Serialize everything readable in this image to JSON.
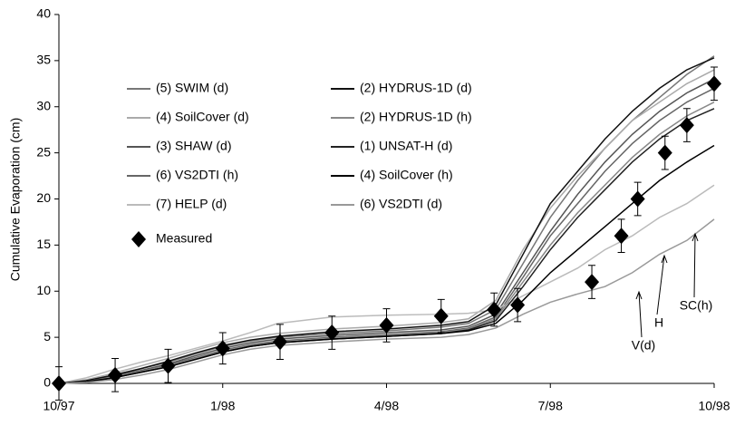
{
  "chart_data": {
    "type": "line",
    "y_label": "Cumulative Evaporation (cm)",
    "xlim": [
      0,
      12
    ],
    "xticks": [
      {
        "value": 0,
        "label": "10/97"
      },
      {
        "value": 3,
        "label": "1/98"
      },
      {
        "value": 6,
        "label": "4/98"
      },
      {
        "value": 9,
        "label": "7/98"
      },
      {
        "value": 12,
        "label": "10/98"
      }
    ],
    "ylim": [
      0,
      40
    ],
    "yticks": [
      0,
      5,
      10,
      15,
      20,
      25,
      30,
      35,
      40
    ],
    "x": [
      0,
      0.5,
      1,
      1.5,
      2,
      2.5,
      3,
      3.5,
      4,
      5,
      6,
      7,
      7.5,
      8,
      8.5,
      9,
      9.5,
      10,
      10.5,
      11,
      11.5,
      12
    ],
    "series": [
      {
        "name": "(5) SWIM (d)",
        "color": "#777777",
        "values": [
          0,
          0.3,
          0.9,
          1.6,
          2.3,
          3.2,
          4.0,
          4.6,
          5.0,
          5.4,
          5.7,
          6.1,
          6.5,
          8.0,
          13,
          18,
          22,
          25.5,
          28.5,
          31,
          33.5,
          35.5
        ]
      },
      {
        "name": "(4) SoilCover (d)",
        "color": "#aaaaaa",
        "values": [
          0,
          0.4,
          1.1,
          1.9,
          2.7,
          3.6,
          4.4,
          5.0,
          5.4,
          5.9,
          6.2,
          6.6,
          7.0,
          9,
          14.5,
          19,
          22.5,
          25.5,
          28.5,
          30.5,
          32.5,
          34
        ]
      },
      {
        "name": "(3) SHAW (d)",
        "color": "#555555",
        "values": [
          0,
          0.2,
          0.8,
          1.4,
          2.1,
          3.0,
          3.8,
          4.4,
          4.8,
          5.2,
          5.5,
          5.8,
          6.2,
          7.5,
          12,
          16.5,
          20.5,
          24,
          27,
          29.5,
          31.5,
          33
        ]
      },
      {
        "name": "(6) VS2DTI (h)",
        "color": "#666666",
        "values": [
          0,
          0.2,
          0.7,
          1.3,
          2.0,
          2.8,
          3.6,
          4.2,
          4.6,
          5.0,
          5.3,
          5.6,
          6.0,
          7.2,
          11.5,
          16,
          19.5,
          23,
          26,
          28.5,
          30.5,
          32
        ]
      },
      {
        "name": "(7) HELP (d)",
        "color": "#bbbbbb",
        "values": [
          0,
          0.6,
          1.5,
          2.3,
          3.0,
          3.8,
          4.6,
          5.5,
          6.5,
          7.2,
          7.4,
          7.5,
          7.6,
          8.0,
          9.5,
          11,
          12.5,
          14.5,
          16,
          18,
          19.5,
          21.5
        ]
      },
      {
        "name": "(2) HYDRUS-1D (d)",
        "color": "#111111",
        "values": [
          0,
          0.3,
          0.9,
          1.6,
          2.4,
          3.3,
          4.1,
          4.7,
          5.1,
          5.6,
          5.9,
          6.3,
          6.7,
          8.5,
          14,
          19.5,
          23,
          26.5,
          29.5,
          32,
          34,
          35.3
        ]
      },
      {
        "name": "(2) HYDRUS-1D (h)",
        "color": "#888888",
        "values": [
          0,
          0.2,
          0.7,
          1.3,
          1.9,
          2.7,
          3.5,
          4.1,
          4.5,
          4.9,
          5.2,
          5.5,
          5.9,
          7,
          11,
          15,
          18.5,
          21.5,
          24.5,
          27,
          29,
          30.5
        ]
      },
      {
        "name": "(1) UNSAT-H (d)",
        "color": "#222222",
        "values": [
          0,
          0.1,
          0.6,
          1.2,
          1.8,
          2.6,
          3.4,
          4.0,
          4.4,
          4.8,
          5.1,
          5.4,
          5.8,
          6.8,
          10.5,
          14.5,
          18,
          21,
          24,
          26.5,
          28.5,
          29.8
        ]
      },
      {
        "name": "(4) SoilCover (h)",
        "color": "#000000",
        "values": [
          0,
          0.2,
          0.6,
          1.2,
          1.8,
          2.6,
          3.4,
          4.0,
          4.4,
          4.8,
          5.1,
          5.4,
          5.7,
          6.5,
          9,
          12,
          14.5,
          17,
          19.5,
          22,
          24,
          25.8
        ]
      },
      {
        "name": "(6) VS2DTI (d)",
        "color": "#999999",
        "values": [
          0,
          0.1,
          0.4,
          0.9,
          1.5,
          2.3,
          3.1,
          3.7,
          4.1,
          4.5,
          4.8,
          5.0,
          5.3,
          6,
          7.5,
          8.8,
          9.7,
          10.5,
          12,
          14,
          15.5,
          17.8
        ]
      }
    ],
    "measured": {
      "name": "Measured",
      "color": "#000000",
      "x": [
        0,
        1.03,
        2,
        3,
        4.05,
        5,
        6,
        7,
        7.97,
        8.4,
        9.76,
        10.3,
        10.6,
        11.1,
        11.5,
        12
      ],
      "values": [
        0,
        0.9,
        1.9,
        3.8,
        4.5,
        5.5,
        6.3,
        7.3,
        8.0,
        8.5,
        11,
        16,
        20,
        25,
        28,
        32.5
      ],
      "errors": [
        1.8,
        1.8,
        1.8,
        1.7,
        1.9,
        1.8,
        1.8,
        1.8,
        1.8,
        1.8,
        1.8,
        1.8,
        1.8,
        1.8,
        1.8,
        1.8
      ]
    },
    "annotations": [
      "V(d)",
      "H",
      "SC(h)"
    ]
  }
}
